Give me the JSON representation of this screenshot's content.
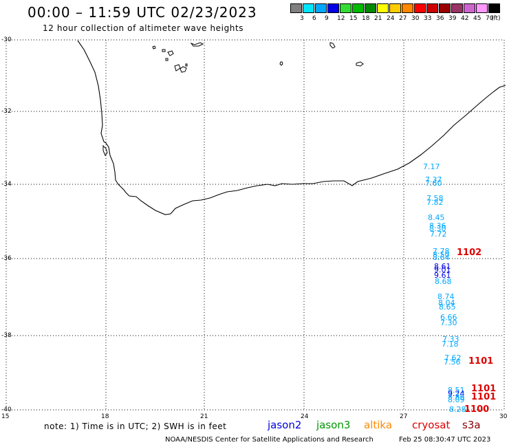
{
  "header": {
    "title": "00:00 – 11:59 UTC 02/23/2023",
    "subtitle": "12 hour collection of altimeter wave heights"
  },
  "color_scale": {
    "unit": "(ft)",
    "entries": [
      {
        "label": "",
        "color": "#808080"
      },
      {
        "label": "3",
        "color": "#00e5ff"
      },
      {
        "label": "6",
        "color": "#00a8ff"
      },
      {
        "label": "9",
        "color": "#0000e6"
      },
      {
        "label": "12",
        "color": "#33dd33"
      },
      {
        "label": "15",
        "color": "#00bb00"
      },
      {
        "label": "18",
        "color": "#008800"
      },
      {
        "label": "21",
        "color": "#ffff00"
      },
      {
        "label": "24",
        "color": "#ffcc00"
      },
      {
        "label": "27",
        "color": "#ff8800"
      },
      {
        "label": "30",
        "color": "#ff0000"
      },
      {
        "label": "33",
        "color": "#cc0000"
      },
      {
        "label": "36",
        "color": "#990000"
      },
      {
        "label": "39",
        "color": "#993366"
      },
      {
        "label": "42",
        "color": "#cc66cc"
      },
      {
        "label": "45",
        "color": "#ff99ff"
      },
      {
        "label": "70",
        "color": "#000000"
      }
    ]
  },
  "map": {
    "lat_labels": [
      "-30",
      "-32",
      "-34",
      "-36",
      "-38",
      "-40"
    ],
    "lon_labels": [
      "15",
      "18",
      "21",
      "24",
      "27",
      "30"
    ]
  },
  "readings": [
    {
      "text": "7.17",
      "color": "#00a8ff"
    },
    {
      "text": "7.37",
      "color": "#00a8ff"
    },
    {
      "text": "7.60",
      "color": "#00a8ff"
    },
    {
      "text": "7.58",
      "color": "#00a8ff"
    },
    {
      "text": "7.82",
      "color": "#00a8ff"
    },
    {
      "text": "8.45",
      "color": "#00a8ff"
    },
    {
      "text": "8.36",
      "color": "#00a8ff"
    },
    {
      "text": "8.30",
      "color": "#00a8ff"
    },
    {
      "text": "7.72",
      "color": "#00a8ff"
    },
    {
      "text": "7.78",
      "color": "#00a8ff"
    },
    {
      "text": "8.50",
      "color": "#00a8ff"
    },
    {
      "text": "8.64",
      "color": "#00a8ff"
    },
    {
      "text": "1102",
      "color": "#dd0000"
    },
    {
      "text": "8.61",
      "color": "#0000e6"
    },
    {
      "text": "9.01",
      "color": "#0000e6"
    },
    {
      "text": "9.61",
      "color": "#0000e6"
    },
    {
      "text": "8.68",
      "color": "#00a8ff"
    },
    {
      "text": "8.74",
      "color": "#00a8ff"
    },
    {
      "text": "8.04",
      "color": "#00a8ff"
    },
    {
      "text": "8.65",
      "color": "#00a8ff"
    },
    {
      "text": "6.66",
      "color": "#00a8ff"
    },
    {
      "text": "7.30",
      "color": "#00a8ff"
    },
    {
      "text": "7.33",
      "color": "#00a8ff"
    },
    {
      "text": "7.18",
      "color": "#00a8ff"
    },
    {
      "text": "7.62",
      "color": "#00a8ff"
    },
    {
      "text": "7.56",
      "color": "#00a8ff"
    },
    {
      "text": "1101",
      "color": "#dd0000"
    },
    {
      "text": "8.51",
      "color": "#00a8ff"
    },
    {
      "text": "9.24",
      "color": "#0000e6"
    },
    {
      "text": "8.86",
      "color": "#00a8ff"
    },
    {
      "text": "8.09",
      "color": "#00a8ff"
    },
    {
      "text": "1101",
      "color": "#dd0000"
    },
    {
      "text": "1101",
      "color": "#dd0000"
    },
    {
      "text": "8.28",
      "color": "#00a8ff"
    },
    {
      "text": "1100",
      "color": "#dd0000"
    }
  ],
  "footer": {
    "note": "note: 1) Time is in UTC; 2) SWH is in feet",
    "satellites": [
      {
        "name": "jason2",
        "color": "#0000dd"
      },
      {
        "name": "jason3",
        "color": "#009900"
      },
      {
        "name": "altika",
        "color": "#ff8800"
      },
      {
        "name": "cryosat",
        "color": "#dd0000"
      },
      {
        "name": "s3a",
        "color": "#880000"
      }
    ],
    "org": "NOAA/NESDIS Center for Satellite Applications and Research",
    "timestamp": "Feb 25 08:30:47 UTC 2023"
  }
}
